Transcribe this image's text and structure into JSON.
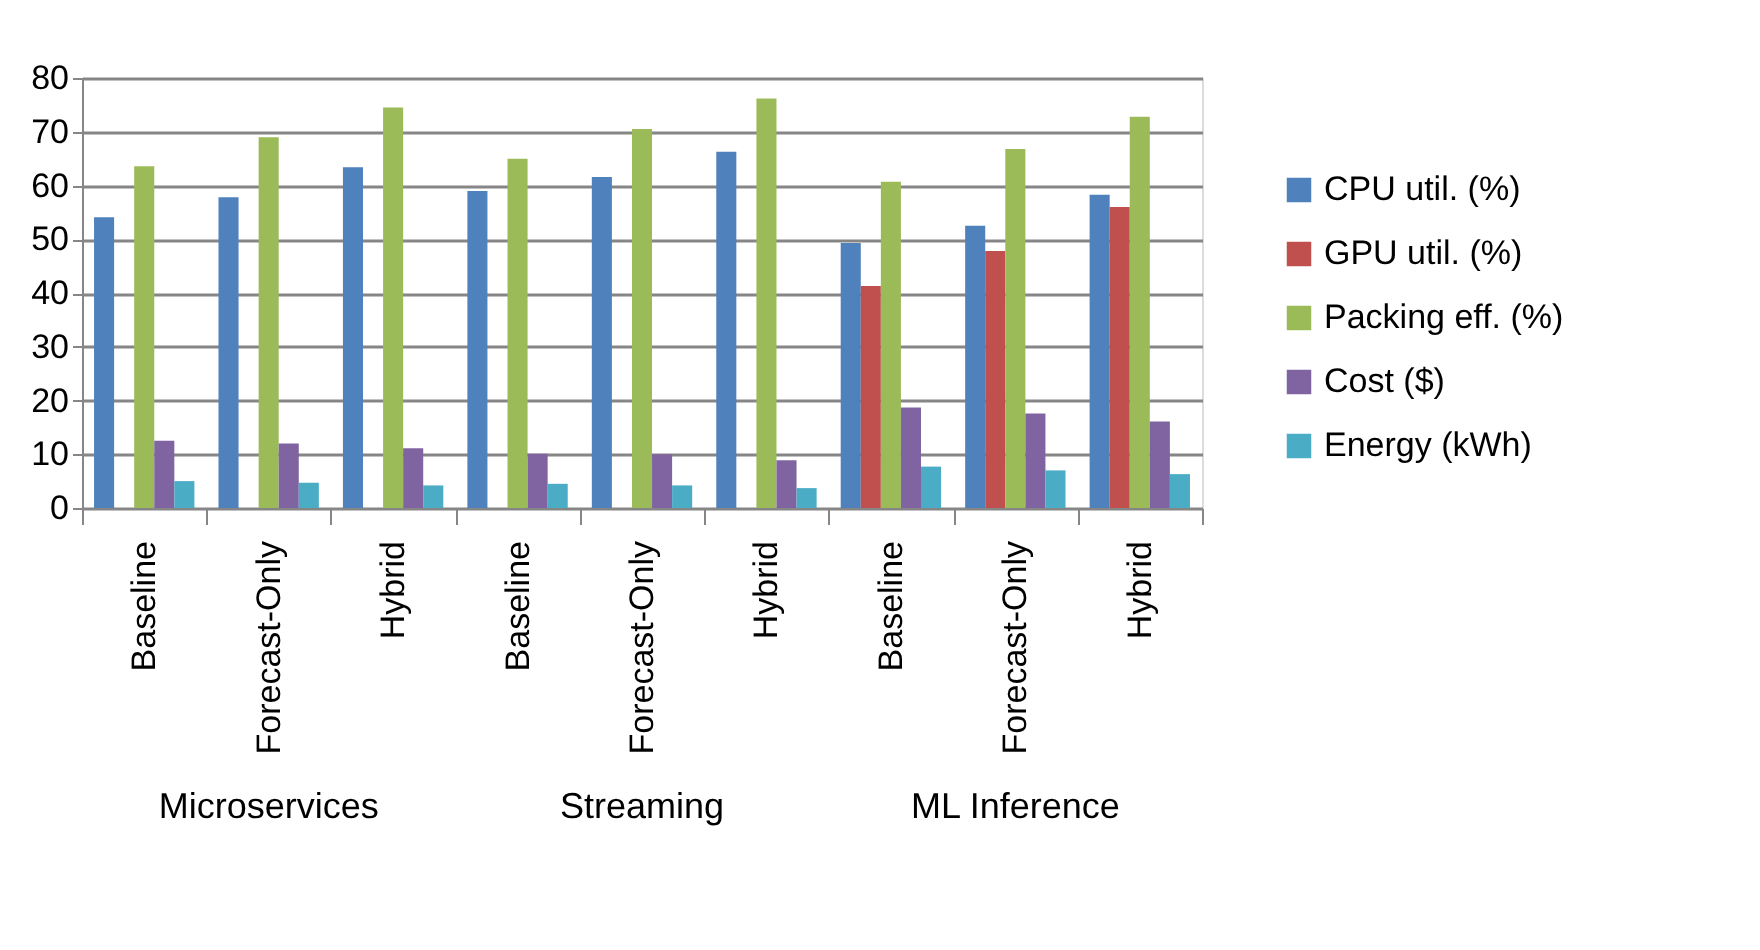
{
  "chart_data": {
    "type": "bar",
    "categories": [
      "Baseline",
      "Forecast-Only",
      "Hybrid",
      "Baseline",
      "Forecast-Only",
      "Hybrid",
      "Baseline",
      "Forecast-Only",
      "Hybrid"
    ],
    "annotations": [
      "Microservices",
      "Streaming",
      "ML Inference"
    ],
    "ylim": [
      0,
      80
    ],
    "yticks": [
      0,
      10,
      20,
      30,
      40,
      50,
      60,
      70,
      80
    ],
    "grid": "y",
    "legend": "right",
    "series": [
      {
        "name": "CPU util. (%)",
        "color": "#4f81bd",
        "values": [
          54.1,
          57.8,
          63.4,
          59.0,
          61.6,
          66.3,
          49.3,
          52.5,
          58.3
        ]
      },
      {
        "name": "GPU util. (%)",
        "color": "#c0504d",
        "values": [
          null,
          null,
          null,
          null,
          null,
          null,
          41.3,
          47.8,
          56.0
        ]
      },
      {
        "name": "Packing eff. (%)",
        "color": "#9bbb59",
        "values": [
          63.6,
          69.0,
          74.5,
          65.0,
          70.5,
          76.2,
          60.7,
          66.8,
          72.8
        ]
      },
      {
        "name": "Cost ($)",
        "color": "#8064a2",
        "values": [
          12.5,
          12.0,
          11.1,
          10.1,
          10.0,
          8.9,
          18.7,
          17.6,
          16.1
        ]
      },
      {
        "name": "Energy (kWh)",
        "color": "#4bacc6",
        "values": [
          5.0,
          4.7,
          4.2,
          4.5,
          4.2,
          3.7,
          7.7,
          7.0,
          6.3
        ]
      }
    ]
  }
}
